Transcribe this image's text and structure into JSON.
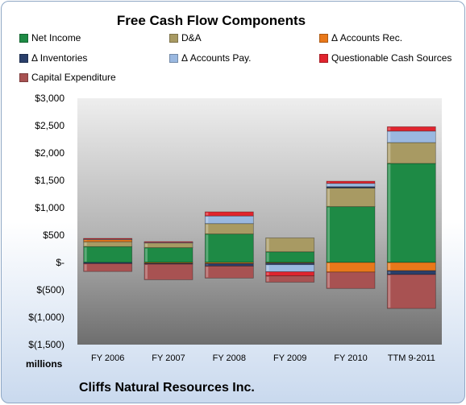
{
  "chart_data": {
    "type": "bar",
    "stacked": true,
    "title": "Free Cash Flow Components",
    "units_label": "millions",
    "company": "Cliffs Natural Resources Inc.",
    "categories": [
      "FY 2006",
      "FY 2007",
      "FY 2008",
      "FY 2009",
      "FY 2010",
      "TTM 9-2011"
    ],
    "ylim": [
      -1500,
      3000
    ],
    "yticks": [
      3000,
      2500,
      2000,
      1500,
      1000,
      500,
      0,
      -500,
      -1000,
      -1500
    ],
    "ytick_labels": [
      "$3,000",
      "$2,500",
      "$2,000",
      "$1,500",
      "$1,000",
      "$500",
      "$-",
      "$(500)",
      "$(1,000)",
      "$(1,500)"
    ],
    "grid": false,
    "legend_position": "top",
    "series": [
      {
        "name": "Net Income",
        "color": "#1e8a45",
        "values": [
          290,
          270,
          520,
          195,
          1020,
          1810
        ]
      },
      {
        "name": "D&A",
        "color": "#a89a63",
        "values": [
          90,
          90,
          190,
          255,
          340,
          380
        ]
      },
      {
        "name": "Δ Accounts Rec.",
        "color": "#e8781a",
        "values": [
          40,
          -15,
          -20,
          -10,
          -175,
          -150
        ]
      },
      {
        "name": "Δ Inventories",
        "color": "#2a3f6a",
        "values": [
          -20,
          -15,
          -45,
          -30,
          25,
          -70
        ]
      },
      {
        "name": "Δ Accounts Pay.",
        "color": "#9ab8e0",
        "values": [
          10,
          10,
          140,
          -130,
          60,
          210
        ]
      },
      {
        "name": "Questionable Cash Sources",
        "color": "#e0242e",
        "values": [
          10,
          10,
          75,
          -75,
          40,
          80
        ]
      },
      {
        "name": "Capital Expenditure",
        "color": "#a85252",
        "values": [
          -145,
          -285,
          -220,
          -115,
          -300,
          -620
        ]
      }
    ]
  }
}
